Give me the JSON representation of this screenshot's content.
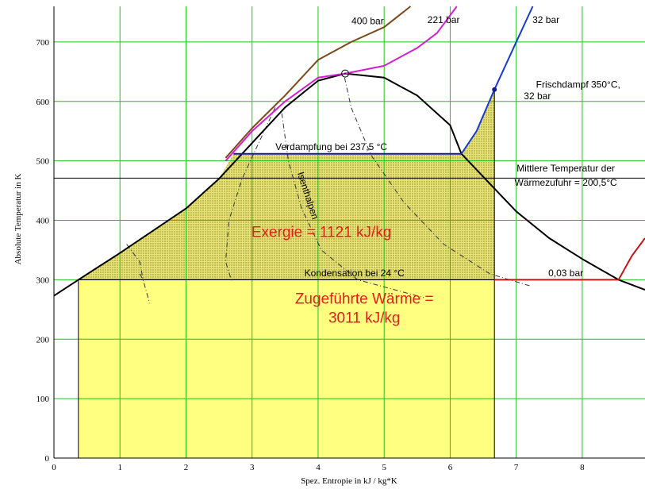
{
  "chart_data": {
    "type": "line",
    "xlabel": "Spez. Entropie in kJ / kg*K",
    "ylabel": "Absolute Temperatur in K",
    "xlim": [
      0,
      8.95
    ],
    "ylim": [
      0,
      760
    ],
    "xticks": [
      0,
      1,
      2,
      3,
      4,
      5,
      6,
      7,
      8
    ],
    "yticks": [
      0,
      100,
      200,
      300,
      400,
      500,
      600,
      700
    ],
    "grid": true,
    "grid_color": "#22c022",
    "critical_point": {
      "x": 4.41,
      "y": 647
    },
    "live_steam_point": {
      "x": 6.67,
      "y": 620
    },
    "series": [
      {
        "color": "#000000",
        "points": [
          [
            0,
            273
          ],
          [
            0.37,
            300
          ],
          [
            1,
            345
          ],
          [
            2,
            420
          ],
          [
            2.5,
            470
          ],
          [
            3,
            530
          ],
          [
            3.5,
            590
          ],
          [
            4,
            635
          ],
          [
            4.41,
            647
          ],
          [
            5,
            640
          ],
          [
            5.5,
            610
          ],
          [
            6,
            560
          ],
          [
            6.17,
            512
          ],
          [
            6.7,
            450
          ],
          [
            7,
            415
          ],
          [
            7.5,
            370
          ],
          [
            8,
            335
          ],
          [
            8.55,
            300
          ],
          [
            8.95,
            283
          ]
        ]
      },
      {
        "name": "400 bar",
        "color": "#7a4a1a",
        "points": [
          [
            2.6,
            505
          ],
          [
            3,
            555
          ],
          [
            3.5,
            610
          ],
          [
            4,
            670
          ],
          [
            4.5,
            700
          ],
          [
            5,
            725
          ],
          [
            5.4,
            760
          ]
        ]
      },
      {
        "name": "221 bar",
        "color": "#d020d0",
        "points": [
          [
            2.6,
            500
          ],
          [
            3,
            550
          ],
          [
            3.5,
            600
          ],
          [
            4,
            640
          ],
          [
            4.41,
            647
          ],
          [
            5,
            660
          ],
          [
            5.5,
            690
          ],
          [
            5.8,
            715
          ],
          [
            6.1,
            760
          ]
        ]
      },
      {
        "name": "32 bar",
        "color": "#1a1aa0",
        "points": [
          [
            2.72,
            512
          ],
          [
            6.17,
            512
          ]
        ]
      },
      {
        "name": "32 bar",
        "color": "#1a3acc",
        "points": [
          [
            6.17,
            512
          ],
          [
            6.4,
            550
          ],
          [
            6.67,
            620
          ],
          [
            7,
            700
          ],
          [
            7.25,
            760
          ]
        ]
      },
      {
        "name": "0,03 bar",
        "color": "#c01818",
        "points": [
          [
            6.67,
            300
          ],
          [
            8.55,
            300
          ],
          [
            8.75,
            340
          ],
          [
            8.95,
            370
          ]
        ]
      }
    ],
    "isenthalpes": [
      [
        [
          3.35,
          590
        ],
        [
          3.1,
          530
        ],
        [
          2.85,
          470
        ],
        [
          2.65,
          400
        ],
        [
          2.6,
          330
        ],
        [
          2.7,
          295
        ]
      ],
      [
        [
          3.45,
          580
        ],
        [
          3.55,
          500
        ],
        [
          3.75,
          420
        ],
        [
          4.05,
          350
        ],
        [
          4.6,
          300
        ],
        [
          5.6,
          270
        ]
      ],
      [
        [
          4.4,
          640
        ],
        [
          4.5,
          590
        ],
        [
          4.8,
          510
        ],
        [
          5.3,
          430
        ],
        [
          5.9,
          360
        ],
        [
          6.6,
          310
        ],
        [
          7.2,
          290
        ]
      ],
      [
        [
          1.3,
          310
        ],
        [
          1.35,
          300
        ],
        [
          1.4,
          280
        ],
        [
          1.45,
          260
        ]
      ],
      [
        [
          1.1,
          360
        ],
        [
          1.3,
          330
        ],
        [
          1.35,
          300
        ]
      ]
    ],
    "areas": {
      "heat": {
        "color": "#ffff80",
        "x_range": [
          0.37,
          6.67
        ],
        "y_range": [
          0,
          300
        ]
      },
      "exergy": {
        "color": "#d6d26a",
        "points": [
          [
            0.37,
            300
          ],
          [
            1,
            345
          ],
          [
            2,
            420
          ],
          [
            2.5,
            470
          ],
          [
            2.72,
            512
          ],
          [
            6.17,
            512
          ],
          [
            6.4,
            550
          ],
          [
            6.67,
            620
          ],
          [
            6.67,
            300
          ]
        ]
      }
    },
    "hlines": [
      {
        "y": 471,
        "color": "#000000"
      }
    ],
    "annotations": [
      {
        "id": "label_400",
        "text": "400 bar",
        "x": 4.75,
        "y": 730,
        "class": "ann"
      },
      {
        "id": "label_221",
        "text": "221 bar",
        "x": 5.9,
        "y": 732,
        "class": "ann"
      },
      {
        "id": "label_32",
        "text": "32 bar",
        "x": 7.45,
        "y": 732,
        "class": "ann"
      },
      {
        "id": "label_frisch1",
        "text": "Frischdampf 350°C,",
        "x": 7.3,
        "y": 623,
        "class": "ann"
      },
      {
        "id": "label_frisch2",
        "text": "32 bar",
        "x": 7.32,
        "y": 604,
        "class": "ann"
      },
      {
        "id": "label_verd",
        "text": "Verdampfung bei 237,5 °C",
        "x": 4.2,
        "y": 518,
        "class": "ann"
      },
      {
        "id": "label_mittl1",
        "text": "Mittlere Temperatur der",
        "x": 7.75,
        "y": 482,
        "class": "ann"
      },
      {
        "id": "label_mittl2",
        "text": "Wärmezufuhr = 200,5°C",
        "x": 7.75,
        "y": 458,
        "class": "ann"
      },
      {
        "id": "label_exergie",
        "text": "Exergie = 1121 kJ/kg",
        "x": 4.05,
        "y": 372,
        "class": "big"
      },
      {
        "id": "label_kond",
        "text": "Kondensation bei 24 °C",
        "x": 4.55,
        "y": 306,
        "class": "ann"
      },
      {
        "id": "label_003",
        "text": "0,03 bar",
        "x": 7.75,
        "y": 306,
        "class": "ann"
      },
      {
        "id": "label_zug1",
        "text": "Zugeführte Wärme =",
        "x": 4.7,
        "y": 260,
        "class": "big"
      },
      {
        "id": "label_zug2",
        "text": "3011 kJ/kg",
        "x": 4.7,
        "y": 228,
        "class": "big"
      },
      {
        "id": "label_isen",
        "text": "Isenthalpen",
        "x": 3.8,
        "y": 440,
        "class": "ann",
        "rotate": 72
      }
    ]
  }
}
